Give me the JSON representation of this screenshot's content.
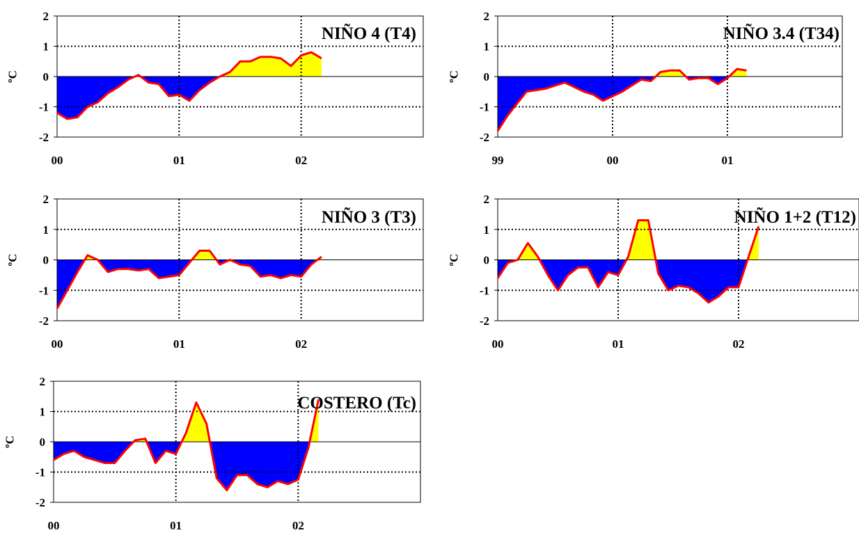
{
  "colors": {
    "positive": "#ffff00",
    "negative": "#0000ff",
    "line": "#ff0000",
    "axis": "#000000",
    "background": "#ffffff"
  },
  "chart_data": [
    {
      "type": "area",
      "title": "NIÑO 4 (T4)",
      "ylabel": "ºC",
      "ylim": [
        -2,
        2
      ],
      "yticks": [
        "2",
        "1",
        "0",
        "-1",
        "-2"
      ],
      "xlim": [
        0,
        36
      ],
      "xticks": [
        {
          "x": 0,
          "label": "00"
        },
        {
          "x": 12,
          "label": "01"
        },
        {
          "x": 24,
          "label": "02"
        }
      ],
      "grid": "dotted",
      "x": [
        0,
        1,
        2,
        3,
        4,
        5,
        6,
        7,
        8,
        9,
        10,
        11,
        12,
        13,
        14,
        15,
        16,
        17,
        18,
        19,
        20,
        21,
        22,
        23,
        24,
        25,
        26
      ],
      "values": [
        -1.2,
        -1.4,
        -1.35,
        -1.0,
        -0.85,
        -0.55,
        -0.35,
        -0.1,
        0.05,
        -0.2,
        -0.25,
        -0.65,
        -0.6,
        -0.8,
        -0.45,
        -0.2,
        0.0,
        0.15,
        0.5,
        0.5,
        0.65,
        0.65,
        0.6,
        0.35,
        0.7,
        0.8,
        0.6
      ]
    },
    {
      "type": "area",
      "title": "NIÑO 3.4 (T34)",
      "ylabel": "ºC",
      "ylim": [
        -2,
        2
      ],
      "yticks": [
        "2",
        "1",
        "0",
        "-1",
        "-2"
      ],
      "xlim": [
        0,
        36
      ],
      "xticks": [
        {
          "x": 0,
          "label": "99"
        },
        {
          "x": 12,
          "label": "00"
        },
        {
          "x": 24,
          "label": "01"
        }
      ],
      "grid": "dotted",
      "x": [
        0,
        1,
        2,
        3,
        4,
        5,
        6,
        7,
        8,
        9,
        10,
        11,
        12,
        13,
        14,
        15,
        16,
        17,
        18,
        19,
        20,
        21,
        22,
        23,
        24,
        25,
        26
      ],
      "values": [
        -1.8,
        -1.3,
        -0.9,
        -0.5,
        -0.45,
        -0.4,
        -0.3,
        -0.2,
        -0.35,
        -0.5,
        -0.6,
        -0.8,
        -0.65,
        -0.5,
        -0.3,
        -0.1,
        -0.15,
        0.15,
        0.2,
        0.2,
        -0.1,
        -0.05,
        -0.05,
        -0.25,
        -0.05,
        0.25,
        0.2
      ]
    },
    {
      "type": "area",
      "title": "NIÑO 3 (T3)",
      "ylabel": "ºC",
      "ylim": [
        -2,
        2
      ],
      "yticks": [
        "2",
        "1",
        "0",
        "-1",
        "-2"
      ],
      "xlim": [
        0,
        36
      ],
      "xticks": [
        {
          "x": 0,
          "label": "00"
        },
        {
          "x": 12,
          "label": "01"
        },
        {
          "x": 24,
          "label": "02"
        }
      ],
      "grid": "dotted",
      "x": [
        0,
        1,
        2,
        3,
        4,
        5,
        6,
        7,
        8,
        9,
        10,
        11,
        12,
        13,
        14,
        15,
        16,
        17,
        18,
        19,
        20,
        21,
        22,
        23,
        24,
        25,
        26
      ],
      "values": [
        -1.6,
        -1.0,
        -0.4,
        0.15,
        0.0,
        -0.4,
        -0.3,
        -0.3,
        -0.35,
        -0.3,
        -0.6,
        -0.55,
        -0.5,
        -0.1,
        0.3,
        0.3,
        -0.15,
        0.0,
        -0.15,
        -0.2,
        -0.55,
        -0.5,
        -0.6,
        -0.5,
        -0.55,
        -0.15,
        0.1
      ]
    },
    {
      "type": "area",
      "title": "NIÑO 1+2 (T12)",
      "ylabel": "ºC",
      "ylim": [
        -2,
        2
      ],
      "yticks": [
        "2",
        "1",
        "0",
        "-1",
        "-2"
      ],
      "xlim": [
        0,
        36
      ],
      "xticks": [
        {
          "x": 0,
          "label": "00"
        },
        {
          "x": 12,
          "label": "01"
        },
        {
          "x": 24,
          "label": "02"
        }
      ],
      "grid": "dotted",
      "x": [
        0,
        1,
        2,
        3,
        4,
        5,
        6,
        7,
        8,
        9,
        10,
        11,
        12,
        13,
        14,
        15,
        16,
        17,
        18,
        19,
        20,
        21,
        22,
        23,
        24,
        25,
        26
      ],
      "values": [
        -0.6,
        -0.1,
        0.0,
        0.55,
        0.1,
        -0.5,
        -1.0,
        -0.5,
        -0.25,
        -0.25,
        -0.9,
        -0.4,
        -0.5,
        0.1,
        1.3,
        1.3,
        -0.45,
        -1.0,
        -0.85,
        -0.9,
        -1.1,
        -1.4,
        -1.2,
        -0.9,
        -0.9,
        0.1,
        1.1
      ]
    },
    {
      "type": "area",
      "title": "COSTERO (Tc)",
      "ylabel": "ºC",
      "ylim": [
        -2,
        2
      ],
      "yticks": [
        "2",
        "1",
        "0",
        "-1",
        "-2"
      ],
      "xlim": [
        0,
        36
      ],
      "xticks": [
        {
          "x": 0,
          "label": "00"
        },
        {
          "x": 12,
          "label": "01"
        },
        {
          "x": 24,
          "label": "02"
        }
      ],
      "grid": "dotted",
      "x": [
        0,
        1,
        2,
        3,
        4,
        5,
        6,
        7,
        8,
        9,
        10,
        11,
        12,
        13,
        14,
        15,
        16,
        17,
        18,
        19,
        20,
        21,
        22,
        23,
        24,
        25,
        26
      ],
      "values": [
        -0.6,
        -0.4,
        -0.3,
        -0.5,
        -0.6,
        -0.7,
        -0.7,
        -0.3,
        0.05,
        0.1,
        -0.7,
        -0.3,
        -0.4,
        0.3,
        1.3,
        0.6,
        -1.2,
        -1.6,
        -1.1,
        -1.1,
        -1.4,
        -1.5,
        -1.3,
        -1.4,
        -1.25,
        -0.2,
        1.4
      ]
    }
  ]
}
